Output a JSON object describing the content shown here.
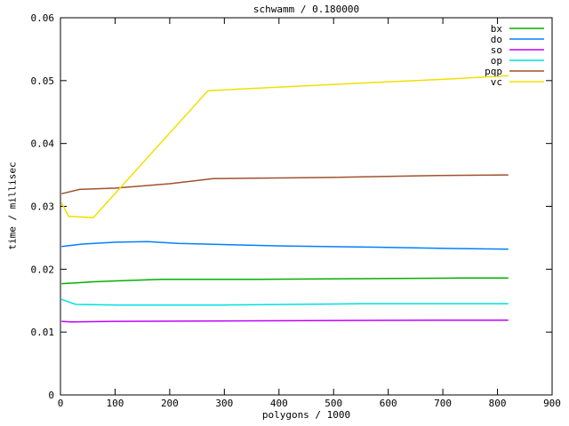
{
  "title": "schwamm / 0.180000",
  "colors": {
    "background": "#ffffff",
    "axis": "#000000",
    "text": "#000000"
  },
  "chart_data": {
    "type": "line",
    "title": "schwamm / 0.180000",
    "xlabel": "polygons / 1000",
    "ylabel": "time / millisec",
    "xlim": [
      0,
      900
    ],
    "ylim": [
      0,
      0.06
    ],
    "grid": false,
    "legend_position": "top-right-inside",
    "x_ticks": {
      "values": [
        0,
        100,
        200,
        300,
        400,
        500,
        600,
        700,
        800,
        900
      ],
      "labels": [
        "0",
        "100",
        "200",
        "300",
        "400",
        "500",
        "600",
        "700",
        "800",
        "900"
      ]
    },
    "y_ticks": {
      "values": [
        0,
        0.01,
        0.02,
        0.03,
        0.04,
        0.05,
        0.06
      ],
      "labels": [
        "0",
        "0.01",
        "0.02",
        "0.03",
        "0.04",
        "0.05",
        "0.06"
      ]
    },
    "series": [
      {
        "name": "bx",
        "color": "#00b000",
        "points": [
          [
            2,
            0.0177
          ],
          [
            25,
            0.0178
          ],
          [
            60,
            0.018
          ],
          [
            120,
            0.0182
          ],
          [
            185,
            0.0184
          ],
          [
            360,
            0.0184
          ],
          [
            550,
            0.0185
          ],
          [
            730,
            0.0186
          ],
          [
            820,
            0.0186
          ]
        ]
      },
      {
        "name": "do",
        "color": "#0080ff",
        "points": [
          [
            2,
            0.0236
          ],
          [
            40,
            0.024
          ],
          [
            100,
            0.0243
          ],
          [
            160,
            0.0244
          ],
          [
            215,
            0.0241
          ],
          [
            310,
            0.0239
          ],
          [
            405,
            0.0237
          ],
          [
            575,
            0.0235
          ],
          [
            720,
            0.0233
          ],
          [
            820,
            0.0232
          ]
        ]
      },
      {
        "name": "so",
        "color": "#bf00ff",
        "points": [
          [
            2,
            0.0117
          ],
          [
            20,
            0.0116
          ],
          [
            100,
            0.0117
          ],
          [
            410,
            0.0118
          ],
          [
            690,
            0.0119
          ],
          [
            820,
            0.0119
          ]
        ]
      },
      {
        "name": "op",
        "color": "#00e0e0",
        "points": [
          [
            2,
            0.0152
          ],
          [
            28,
            0.0144
          ],
          [
            100,
            0.0143
          ],
          [
            300,
            0.0143
          ],
          [
            550,
            0.0145
          ],
          [
            820,
            0.0145
          ]
        ]
      },
      {
        "name": "pqp",
        "color": "#a0522d",
        "points": [
          [
            2,
            0.032
          ],
          [
            35,
            0.0327
          ],
          [
            100,
            0.0329
          ],
          [
            200,
            0.0336
          ],
          [
            280,
            0.0344
          ],
          [
            500,
            0.0346
          ],
          [
            690,
            0.0349
          ],
          [
            820,
            0.035
          ]
        ]
      },
      {
        "name": "vc",
        "color": "#f0e000",
        "points": [
          [
            2,
            0.0306
          ],
          [
            15,
            0.0284
          ],
          [
            60,
            0.0282
          ],
          [
            270,
            0.0484
          ],
          [
            430,
            0.0491
          ],
          [
            573,
            0.0497
          ],
          [
            700,
            0.0502
          ],
          [
            820,
            0.0508
          ]
        ]
      }
    ]
  }
}
